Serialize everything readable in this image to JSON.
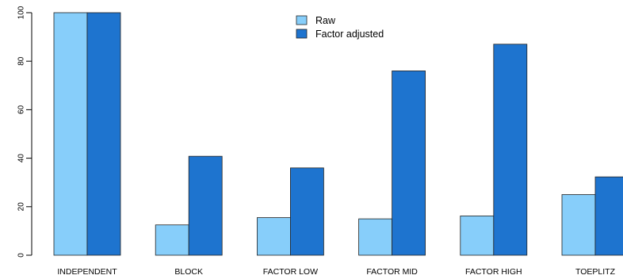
{
  "chart_data": {
    "type": "bar",
    "categories": [
      "INDEPENDENT",
      "BLOCK",
      "FACTOR LOW",
      "FACTOR MID",
      "FACTOR HIGH",
      "TOEPLITZ"
    ],
    "series": [
      {
        "name": "Raw",
        "values": [
          100,
          12.5,
          15.5,
          15,
          16.2,
          25
        ],
        "color": "#87cefa"
      },
      {
        "name": "Factor adjusted",
        "values": [
          100,
          40.8,
          36,
          76,
          87,
          32.3
        ],
        "color": "#1e74cf"
      }
    ],
    "title": "",
    "xlabel": "",
    "ylabel": "",
    "ylim": [
      0,
      100
    ],
    "yticks": [
      0,
      20,
      40,
      60,
      80,
      100
    ],
    "grid": false,
    "legend_placement": "top-center"
  }
}
